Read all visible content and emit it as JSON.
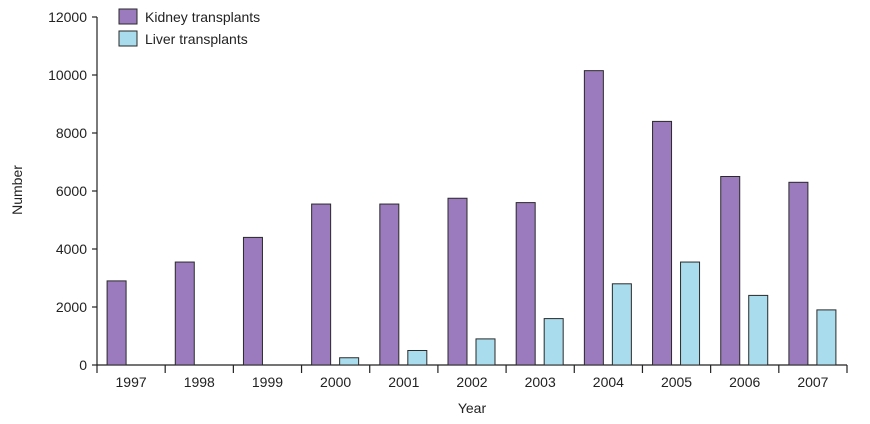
{
  "chart_data": {
    "type": "bar",
    "title": "",
    "xlabel": "Year",
    "ylabel": "Number",
    "categories": [
      "1997",
      "1998",
      "1999",
      "2000",
      "2001",
      "2002",
      "2003",
      "2004",
      "2005",
      "2006",
      "2007"
    ],
    "series": [
      {
        "name": "Kidney transplants",
        "color": "#9b7bbd",
        "values": [
          2900,
          3550,
          4400,
          5550,
          5550,
          5750,
          5600,
          10150,
          8400,
          6500,
          6300
        ]
      },
      {
        "name": "Liver transplants",
        "color": "#a9dcec",
        "values": [
          0,
          0,
          0,
          250,
          500,
          900,
          1600,
          2800,
          3550,
          2400,
          1900
        ]
      }
    ],
    "ylim": [
      0,
      12000
    ],
    "yticks": [
      0,
      2000,
      4000,
      6000,
      8000,
      10000,
      12000
    ],
    "ytick_labels": [
      "0",
      "2000",
      "4000",
      "6000",
      "8000",
      "10000",
      "12000"
    ],
    "grid": false,
    "legend_position": "top-left"
  }
}
